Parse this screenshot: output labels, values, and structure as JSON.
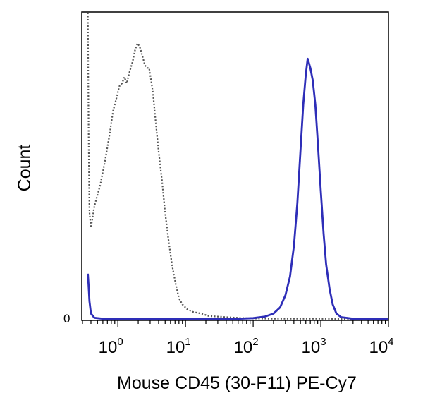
{
  "chart_data": {
    "type": "line",
    "title": "",
    "xlabel": "Mouse CD45 (30-F11) PE-Cy7",
    "ylabel": "Count",
    "x_scale": "log",
    "xlim": [
      0.3,
      10000
    ],
    "ylim": [
      0,
      100
    ],
    "y_zero_label": "0",
    "x_ticks": [
      {
        "base": "10",
        "exp": "0",
        "value": 1
      },
      {
        "base": "10",
        "exp": "1",
        "value": 10
      },
      {
        "base": "10",
        "exp": "2",
        "value": 100
      },
      {
        "base": "10",
        "exp": "3",
        "value": 1000
      },
      {
        "base": "10",
        "exp": "4",
        "value": 10000
      }
    ],
    "grid": false,
    "series": [
      {
        "style": "dotted",
        "color": "#555555",
        "points": [
          [
            0.36,
            100
          ],
          [
            0.37,
            60
          ],
          [
            0.38,
            35
          ],
          [
            0.4,
            30
          ],
          [
            0.45,
            37
          ],
          [
            0.55,
            44
          ],
          [
            0.65,
            52
          ],
          [
            0.75,
            60
          ],
          [
            0.85,
            68
          ],
          [
            0.95,
            72
          ],
          [
            1.05,
            76
          ],
          [
            1.15,
            77
          ],
          [
            1.25,
            79
          ],
          [
            1.35,
            77
          ],
          [
            1.5,
            81
          ],
          [
            1.65,
            84
          ],
          [
            1.8,
            88
          ],
          [
            1.95,
            90
          ],
          [
            2.1,
            89
          ],
          [
            2.3,
            86
          ],
          [
            2.5,
            83
          ],
          [
            2.7,
            82
          ],
          [
            2.9,
            82
          ],
          [
            3.1,
            78
          ],
          [
            3.3,
            74
          ],
          [
            3.6,
            65
          ],
          [
            4.0,
            55
          ],
          [
            4.5,
            45
          ],
          [
            5.0,
            35
          ],
          [
            5.6,
            26
          ],
          [
            6.3,
            18
          ],
          [
            7.1,
            12
          ],
          [
            8.0,
            7
          ],
          [
            9.0,
            5
          ],
          [
            10.5,
            3.5
          ],
          [
            13,
            2.5
          ],
          [
            17,
            2
          ],
          [
            22,
            1.2
          ],
          [
            30,
            1
          ],
          [
            40,
            0.8
          ],
          [
            60,
            0.6
          ],
          [
            100,
            0.4
          ],
          [
            200,
            0.3
          ],
          [
            500,
            0.3
          ],
          [
            1000,
            0.3
          ],
          [
            3000,
            0.2
          ],
          [
            10000,
            0.2
          ]
        ]
      },
      {
        "style": "solid",
        "color": "#2e2eb8",
        "points": [
          [
            0.36,
            15
          ],
          [
            0.37,
            11
          ],
          [
            0.38,
            6
          ],
          [
            0.4,
            2
          ],
          [
            0.45,
            0.6
          ],
          [
            0.6,
            0.3
          ],
          [
            1,
            0.2
          ],
          [
            5,
            0.2
          ],
          [
            20,
            0.2
          ],
          [
            60,
            0.3
          ],
          [
            100,
            0.5
          ],
          [
            150,
            1
          ],
          [
            200,
            2
          ],
          [
            250,
            4
          ],
          [
            300,
            8
          ],
          [
            350,
            14
          ],
          [
            400,
            24
          ],
          [
            450,
            38
          ],
          [
            500,
            55
          ],
          [
            550,
            70
          ],
          [
            600,
            80
          ],
          [
            640,
            85
          ],
          [
            660,
            84
          ],
          [
            700,
            82
          ],
          [
            760,
            78
          ],
          [
            830,
            70
          ],
          [
            900,
            58
          ],
          [
            1000,
            42
          ],
          [
            1100,
            28
          ],
          [
            1200,
            18
          ],
          [
            1350,
            10
          ],
          [
            1500,
            5
          ],
          [
            1700,
            2
          ],
          [
            2000,
            0.8
          ],
          [
            3000,
            0.3
          ],
          [
            10000,
            0.2
          ]
        ]
      }
    ]
  }
}
